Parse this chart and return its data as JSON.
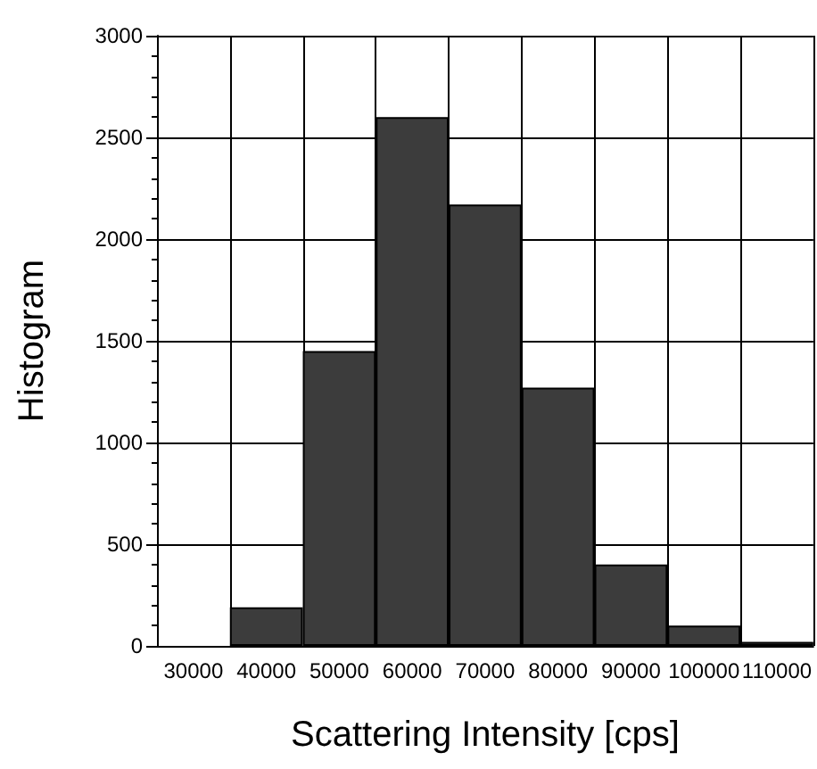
{
  "chart_data": {
    "type": "bar",
    "xlabel": "Scattering Intensity [cps]",
    "ylabel": "Histogram",
    "categories": [
      "30000",
      "40000",
      "50000",
      "60000",
      "70000",
      "80000",
      "90000",
      "100000",
      "110000"
    ],
    "values": [
      0,
      190,
      1450,
      2600,
      2170,
      1270,
      400,
      100,
      20
    ],
    "color": "#3c3c3c",
    "ylim": [
      0,
      3000
    ],
    "yticks": [
      0,
      500,
      1000,
      1500,
      2000,
      2500,
      3000
    ],
    "grid": true
  }
}
